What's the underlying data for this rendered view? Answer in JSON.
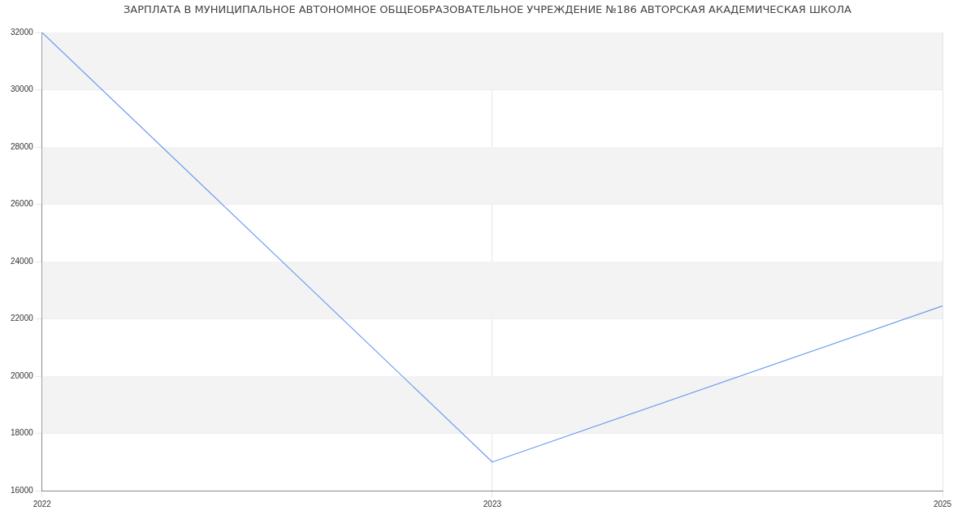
{
  "chart_data": {
    "type": "line",
    "title": "ЗАРПЛАТА В МУНИЦИПАЛЬНОЕ АВТОНОМНОЕ ОБЩЕОБРАЗОВАТЕЛЬНОЕ УЧРЕЖДЕНИЕ №186 АВТОРСКАЯ АКАДЕМИЧЕСКАЯ ШКОЛА",
    "categories": [
      "2022",
      "2023",
      "2025"
    ],
    "series": [
      {
        "color": "#6f9cf2",
        "values": [
          32000,
          17000,
          22450
        ]
      }
    ],
    "ylim": [
      16000,
      32000
    ],
    "yticks": [
      16000,
      18000,
      20000,
      22000,
      24000,
      26000,
      28000,
      30000,
      32000
    ],
    "grid": true,
    "marker": "none",
    "line_style": "solid",
    "bands": [
      {
        "axis": "y",
        "from": 18000,
        "to": 20000,
        "color": "#f3f3f3"
      },
      {
        "axis": "y",
        "from": 22000,
        "to": 24000,
        "color": "#f3f3f3"
      },
      {
        "axis": "y",
        "from": 26000,
        "to": 28000,
        "color": "#f3f3f3"
      },
      {
        "axis": "y",
        "from": 30000,
        "to": 32000,
        "color": "#f3f3f3"
      }
    ]
  }
}
